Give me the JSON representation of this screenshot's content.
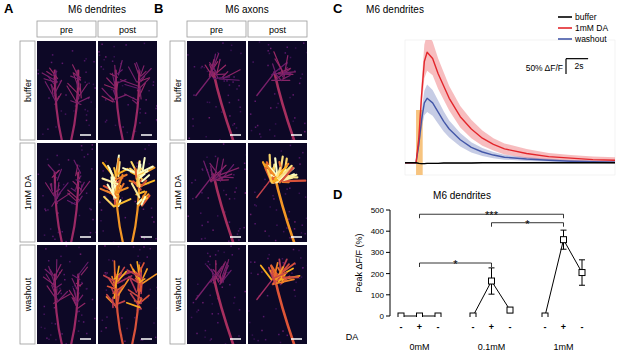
{
  "panels": [
    {
      "label": "A",
      "title": "M6 dendrites",
      "columns": [
        "pre",
        "post"
      ],
      "rows": [
        "buffer",
        "1mM DA",
        "washout"
      ]
    },
    {
      "label": "B",
      "title": "M6 axons",
      "columns": [
        "pre",
        "post"
      ],
      "rows": [
        "buffer",
        "1mM DA",
        "washout"
      ]
    }
  ],
  "chart_data": [
    {
      "label": "C",
      "type": "line",
      "title": "M6 dendrites",
      "x": [
        -1,
        -0.5,
        0,
        0.25,
        0.5,
        0.75,
        1,
        1.5,
        2,
        2.5,
        3,
        4,
        5,
        6,
        7,
        8,
        10,
        12,
        14,
        16,
        18
      ],
      "xlim": [
        -1,
        18
      ],
      "ylim": [
        -40,
        400
      ],
      "tick_labels": false,
      "legend": "top-right",
      "stimulus": [
        0,
        0.6
      ],
      "scale_bar": {
        "x": 2,
        "x_label": "2s",
        "y": 50,
        "y_label": "50% ΔF/F"
      },
      "series": [
        {
          "name": "buffer",
          "color": "#000000",
          "values": [
            0,
            0,
            0,
            -2,
            -3,
            -3,
            -2,
            -2,
            -2,
            -1,
            -1,
            -1,
            -1,
            0,
            0,
            0,
            0,
            0,
            0,
            0,
            0
          ],
          "error": [
            2,
            2,
            2,
            2,
            2,
            2,
            2,
            2,
            2,
            2,
            2,
            2,
            2,
            2,
            2,
            2,
            2,
            2,
            2,
            2,
            2
          ]
        },
        {
          "name": "1mM DA",
          "color": "#e3262b",
          "values": [
            0,
            0,
            0,
            80,
            220,
            330,
            360,
            340,
            290,
            250,
            210,
            150,
            110,
            80,
            60,
            45,
            30,
            20,
            15,
            10,
            8
          ],
          "error": [
            0,
            0,
            0,
            20,
            40,
            55,
            60,
            55,
            50,
            45,
            40,
            35,
            30,
            25,
            20,
            18,
            15,
            12,
            10,
            10,
            10
          ]
        },
        {
          "name": "washout",
          "color": "#4357a8",
          "values": [
            0,
            0,
            0,
            60,
            140,
            195,
            210,
            195,
            165,
            135,
            110,
            75,
            50,
            35,
            25,
            18,
            12,
            8,
            5,
            3,
            2
          ],
          "error": [
            0,
            0,
            0,
            15,
            30,
            40,
            45,
            42,
            38,
            33,
            28,
            22,
            17,
            13,
            10,
            8,
            6,
            5,
            4,
            4,
            4
          ]
        }
      ]
    },
    {
      "label": "D",
      "type": "line",
      "title": "M6 dendrites",
      "y_label": "Peak ΔF/F (%)",
      "x_label": "DA",
      "categories": [
        "-",
        "+",
        "-",
        "-",
        "+",
        "-",
        "-",
        "+",
        "-"
      ],
      "groups": [
        "0mM",
        "0.1mM",
        "1mM"
      ],
      "values": [
        0,
        0,
        0,
        0,
        165,
        28,
        0,
        360,
        205
      ],
      "error": [
        0,
        0,
        0,
        0,
        62,
        12,
        0,
        45,
        60
      ],
      "ylim": [
        0,
        500
      ],
      "yticks": [
        0,
        100,
        200,
        300,
        400,
        500
      ],
      "marker": "square",
      "annotations": [
        {
          "from": 1,
          "to": 4,
          "y": 250,
          "text": "*"
        },
        {
          "from": 4,
          "to": 7,
          "y": 440,
          "text": "*"
        },
        {
          "from": 1,
          "to": 7,
          "y": 480,
          "text": "***"
        }
      ]
    }
  ]
}
